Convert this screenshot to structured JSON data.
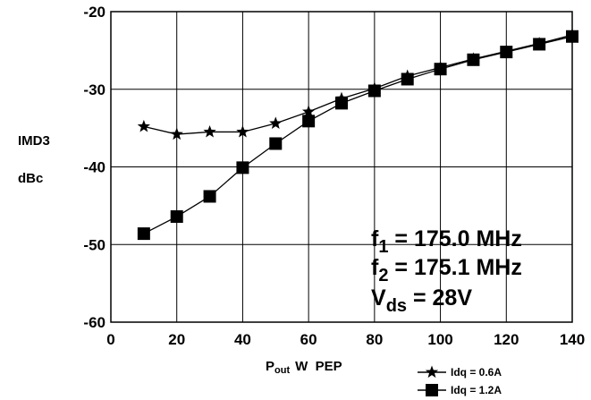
{
  "chart_data": {
    "type": "line",
    "xlabel": {
      "main": "P",
      "sub": "out",
      "rest": "W  PEP"
    },
    "ylabel": [
      "IMD3",
      "dBc"
    ],
    "xlim": [
      0,
      140
    ],
    "ylim": [
      -60,
      -20
    ],
    "xticks": [
      0,
      20,
      40,
      60,
      80,
      100,
      120,
      140
    ],
    "yticks": [
      -60,
      -50,
      -40,
      -30,
      -20
    ],
    "grid": true,
    "legend_position": "bottom-right, below plot",
    "annotations": [
      {
        "main": "f",
        "sub": "1",
        "rest": " = 175.0 MHz"
      },
      {
        "main": "f",
        "sub": "2",
        "rest": " = 175.1 MHz"
      },
      {
        "main": "V",
        "sub": "ds",
        "rest": " = 28V"
      }
    ],
    "series": [
      {
        "name": "Idq = 0.6A",
        "marker": "star",
        "color": "#000000",
        "x": [
          10,
          20,
          30,
          40,
          50,
          60,
          70,
          80,
          90,
          100,
          110,
          120,
          130,
          140
        ],
        "y": [
          -34.8,
          -35.8,
          -35.5,
          -35.5,
          -34.4,
          -32.9,
          -31.2,
          -29.9,
          -28.3,
          -27.2,
          -26.1,
          -25.1,
          -24.1,
          -23.0
        ]
      },
      {
        "name": "Idq = 1.2A",
        "marker": "square",
        "color": "#000000",
        "x": [
          10,
          20,
          30,
          40,
          50,
          60,
          70,
          80,
          90,
          100,
          110,
          120,
          130,
          140
        ],
        "y": [
          -48.6,
          -46.4,
          -43.8,
          -40.1,
          -37.0,
          -34.1,
          -31.8,
          -30.2,
          -28.7,
          -27.4,
          -26.2,
          -25.2,
          -24.2,
          -23.2
        ]
      }
    ]
  }
}
